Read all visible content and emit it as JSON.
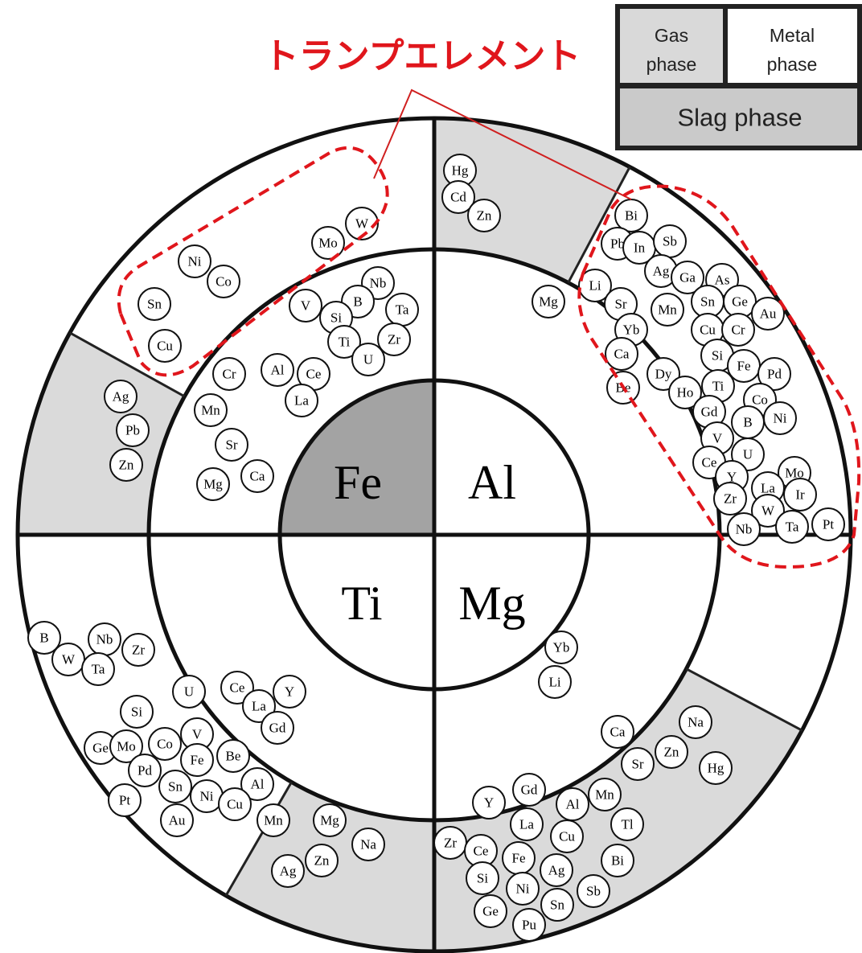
{
  "title": "トランプエレメント",
  "legend": {
    "gas": [
      "Gas",
      "phase"
    ],
    "metal": [
      "Metal",
      "phase"
    ],
    "slag": "Slag phase"
  },
  "metals": [
    "Fe",
    "Al",
    "Ti",
    "Mg"
  ],
  "elements": [
    "Mo",
    "W",
    "Ni",
    "Co",
    "Sn",
    "Cu",
    "Nb",
    "V",
    "B",
    "Ta",
    "Si",
    "Ti",
    "Zr",
    "U",
    "Cr",
    "Al",
    "Ce",
    "La",
    "Ag",
    "Mn",
    "Pb",
    "Sr",
    "Zn",
    "Ca",
    "Mg",
    "Hg",
    "Cd",
    "Zn",
    "Bi",
    "Pb",
    "In",
    "Sb",
    "Ag",
    "Ga",
    "As",
    "Mg",
    "Li",
    "Sr",
    "Mn",
    "Sn",
    "Ge",
    "Au",
    "Yb",
    "Cu",
    "Cr",
    "Ca",
    "Si",
    "Fe",
    "Pd",
    "Be",
    "Dy",
    "Ho",
    "Ti",
    "Co",
    "Gd",
    "B",
    "Ni",
    "V",
    "U",
    "Ce",
    "Mo",
    "Y",
    "La",
    "Ir",
    "Zr",
    "W",
    "Nb",
    "Ta",
    "Pt",
    "B",
    "Nb",
    "W",
    "Zr",
    "Ta",
    "U",
    "Ce",
    "Y",
    "La",
    "Gd",
    "Si",
    "V",
    "Ge",
    "Mo",
    "Co",
    "Fe",
    "Be",
    "Pd",
    "Sn",
    "Al",
    "Ni",
    "Pt",
    "Cu",
    "Au",
    "Mn",
    "Mg",
    "Na",
    "Zn",
    "Ag",
    "Yb",
    "Li",
    "Na",
    "Ca",
    "Zn",
    "Sr",
    "Hg",
    "Gd",
    "Y",
    "Al",
    "Mn",
    "La",
    "Tl",
    "Cu",
    "Zr",
    "Ce",
    "Fe",
    "Bi",
    "Ag",
    "Si",
    "Sb",
    "Ni",
    "Sn",
    "Ge",
    "Pu"
  ]
}
